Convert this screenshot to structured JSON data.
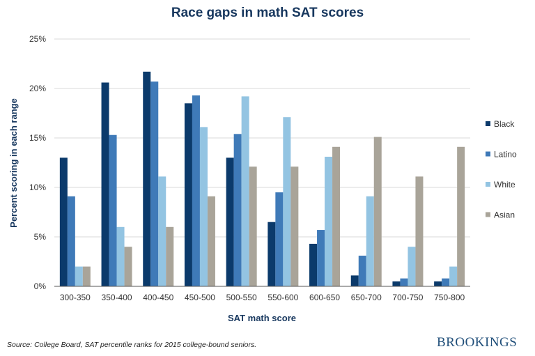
{
  "chart_data": {
    "type": "bar",
    "title": "Race gaps in math SAT scores",
    "xlabel": "SAT math score",
    "ylabel": "Percent scoring in each range",
    "ylim": [
      0,
      25
    ],
    "yticks": [
      "0%",
      "5%",
      "10%",
      "15%",
      "20%",
      "25%"
    ],
    "grid": true,
    "legend_position": "right",
    "categories": [
      "300-350",
      "350-400",
      "400-450",
      "450-500",
      "500-550",
      "550-600",
      "600-650",
      "650-700",
      "700-750",
      "750-800"
    ],
    "series": [
      {
        "name": "Black",
        "color": "#0b3a6b",
        "values": [
          13.0,
          20.6,
          21.7,
          18.5,
          13.0,
          6.5,
          4.3,
          1.1,
          0.5,
          0.5
        ]
      },
      {
        "name": "Latino",
        "color": "#3f7ab8",
        "values": [
          9.1,
          15.3,
          20.7,
          19.3,
          15.4,
          9.5,
          5.7,
          3.1,
          0.8,
          0.8
        ]
      },
      {
        "name": "White",
        "color": "#93c4e2",
        "values": [
          2.0,
          6.0,
          11.1,
          16.1,
          19.2,
          17.1,
          13.1,
          9.1,
          4.0,
          2.0
        ]
      },
      {
        "name": "Asian",
        "color": "#a9a499",
        "values": [
          2.0,
          4.0,
          6.0,
          9.1,
          12.1,
          12.1,
          14.1,
          15.1,
          11.1,
          14.1
        ]
      }
    ]
  },
  "source": "Source: College Board, SAT percentile ranks for 2015 college-bound seniors.",
  "logo_text": "BROOKINGS"
}
